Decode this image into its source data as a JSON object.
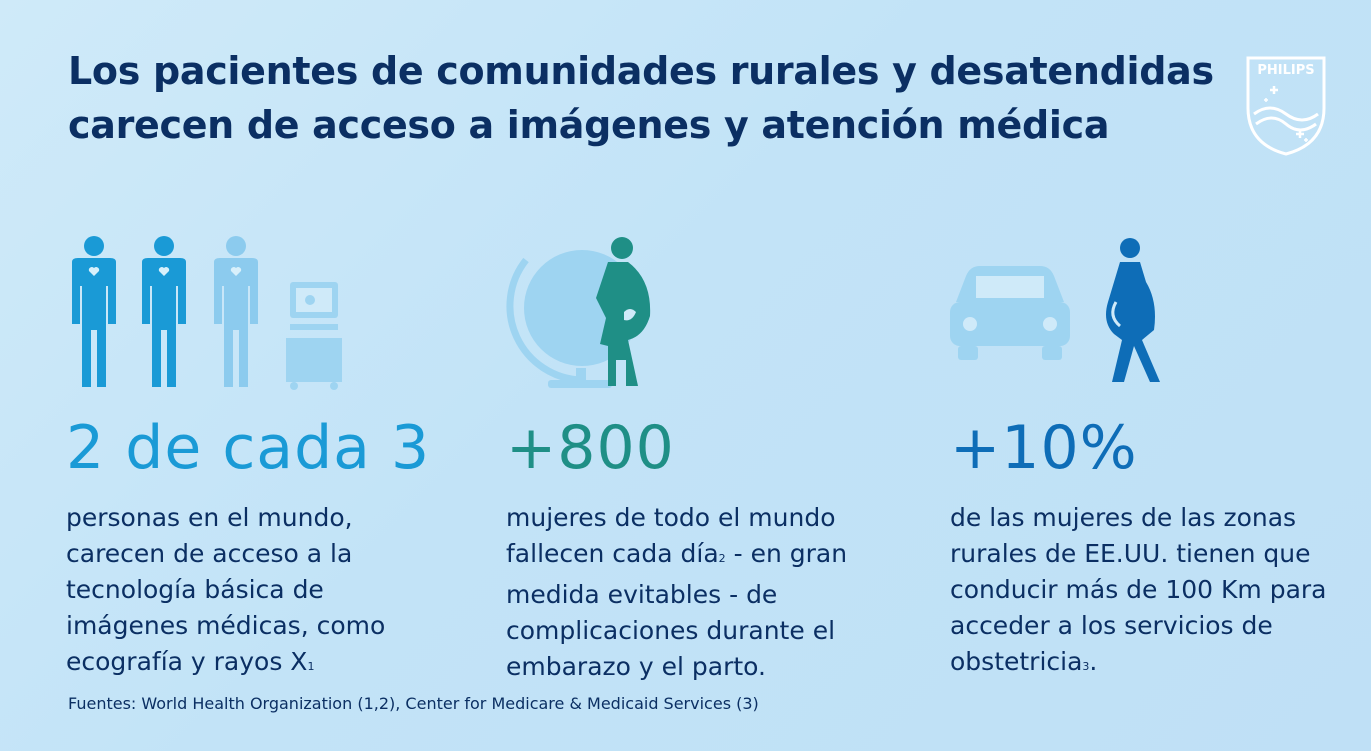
{
  "header": {
    "title_line1": "Los pacientes de comunidades rurales y desatendidas",
    "title_line2": "carecen de acceso a imágenes y atención médica",
    "logo_text": "PHILIPS"
  },
  "stats": [
    {
      "value": "2 de cada 3",
      "text": "personas en el mundo, carecen de acceso a la tecnología básica de imágenes médicas, como ecografía y rayos X",
      "ref": "1",
      "color": "#1a9ad6",
      "icons": [
        "person-icon",
        "person-icon",
        "person-faded-icon",
        "imaging-machine-icon"
      ]
    },
    {
      "value": "+800",
      "text_a": "mujeres de todo el mundo fallecen cada día",
      "ref": "2",
      "text_b": " - en gran medida evitables - de complicaciones durante el embarazo y el parto.",
      "color": "#1f8f86",
      "icons": [
        "globe-icon",
        "pregnant-woman-icon"
      ]
    },
    {
      "value": "+10%",
      "text": "de las mujeres de las zonas rurales de EE.UU. tienen que conducir más de 100 Km para acceder a los servicios de obstetricia",
      "ref": "3",
      "text_end": ".",
      "color": "#0e6db7",
      "icons": [
        "car-icon",
        "walking-pregnant-woman-icon"
      ]
    }
  ],
  "footer": {
    "sources": "Fuentes: World Health Organization (1,2), Center for Medicare & Medicaid Services (3)"
  }
}
